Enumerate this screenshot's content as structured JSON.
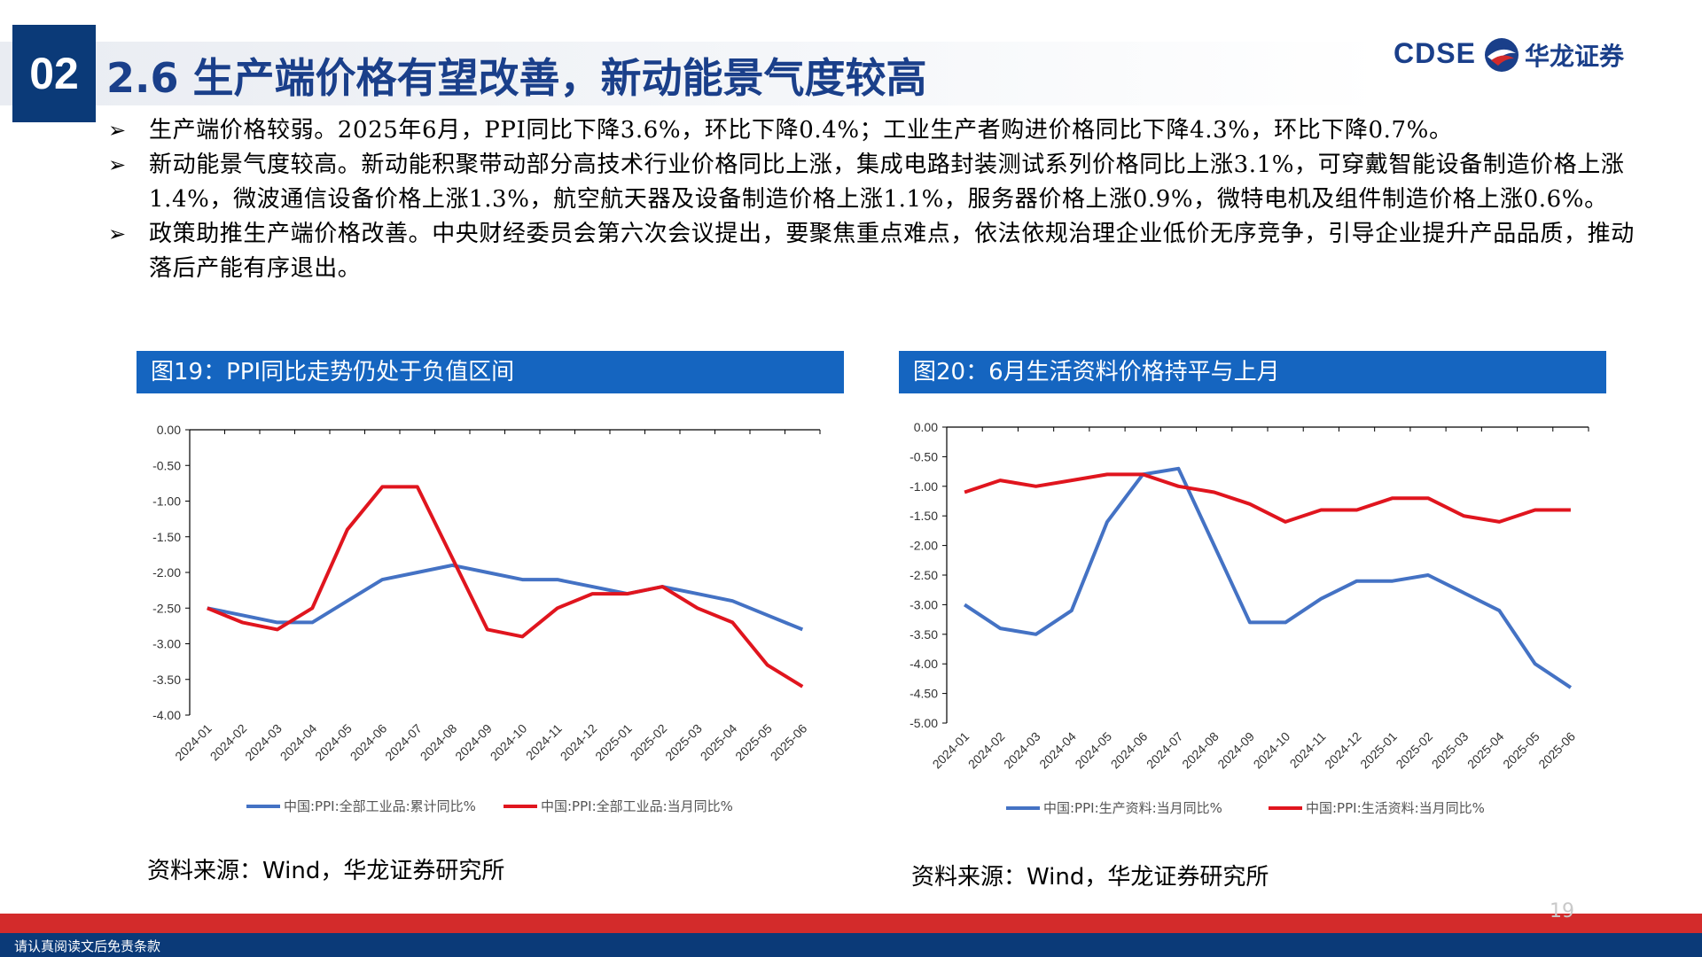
{
  "header": {
    "section_number": "02",
    "title": "2.6 生产端价格有望改善，新动能景气度较高",
    "logo_text": "CDSE",
    "logo_cn": "华龙证券",
    "brand_color": "#1a3f8a"
  },
  "bullets": [
    "生产端价格较弱。2025年6月，PPI同比下降3.6%，环比下降0.4%；工业生产者购进价格同比下降4.3%，环比下降0.7%。",
    "新动能景气度较高。新动能积聚带动部分高技术行业价格同比上涨，集成电路封装测试系列价格同比上涨3.1%，可穿戴智能设备制造价格上涨1.4%，微波通信设备价格上涨1.3%，航空航天器及设备制造价格上涨1.1%，服务器价格上涨0.9%，微特电机及组件制造价格上涨0.6%。",
    "政策助推生产端价格改善。中央财经委员会第六次会议提出，要聚焦重点难点，依法依规治理企业低价无序竞争，引导企业提升产品品质，推动落后产能有序退出。"
  ],
  "figures": [
    {
      "title": "图19：PPI同比走势仍处于负值区间",
      "source": "资料来源：Wind，华龙证券研究所"
    },
    {
      "title": "图20：6月生活资料价格持平与上月",
      "source": "资料来源：Wind，华龙证券研究所"
    }
  ],
  "chart_data": [
    {
      "type": "line",
      "x": [
        "2024-01",
        "2024-02",
        "2024-03",
        "2024-04",
        "2024-05",
        "2024-06",
        "2024-07",
        "2024-08",
        "2024-09",
        "2024-10",
        "2024-11",
        "2024-12",
        "2025-01",
        "2025-02",
        "2025-03",
        "2025-04",
        "2025-05",
        "2025-06"
      ],
      "ylim": [
        -4.0,
        0.0
      ],
      "yticks": [
        "0.00",
        "-0.50",
        "-1.00",
        "-1.50",
        "-2.00",
        "-2.50",
        "-3.00",
        "-3.50",
        "-4.00"
      ],
      "legend_position": "bottom",
      "series": [
        {
          "name": "中国:PPI:全部工业品:累计同比%",
          "color": "#4472c4",
          "values": [
            -2.5,
            -2.6,
            -2.7,
            -2.7,
            -2.4,
            -2.1,
            -2.0,
            -1.9,
            -2.0,
            -2.1,
            -2.1,
            -2.2,
            -2.3,
            -2.2,
            -2.3,
            -2.4,
            -2.6,
            -2.8
          ]
        },
        {
          "name": "中国:PPI:全部工业品:当月同比%",
          "color": "#e0151e",
          "values": [
            -2.5,
            -2.7,
            -2.8,
            -2.5,
            -1.4,
            -0.8,
            -0.8,
            -1.8,
            -2.8,
            -2.9,
            -2.5,
            -2.3,
            -2.3,
            -2.2,
            -2.5,
            -2.7,
            -3.3,
            -3.6
          ]
        }
      ]
    },
    {
      "type": "line",
      "x": [
        "2024-01",
        "2024-02",
        "2024-03",
        "2024-04",
        "2024-05",
        "2024-06",
        "2024-07",
        "2024-08",
        "2024-09",
        "2024-10",
        "2024-11",
        "2024-12",
        "2025-01",
        "2025-02",
        "2025-03",
        "2025-04",
        "2025-05",
        "2025-06"
      ],
      "ylim": [
        -5.0,
        0.0
      ],
      "yticks": [
        "0.00",
        "-0.50",
        "-1.00",
        "-1.50",
        "-2.00",
        "-2.50",
        "-3.00",
        "-3.50",
        "-4.00",
        "-4.50",
        "-5.00"
      ],
      "legend_position": "bottom",
      "series": [
        {
          "name": "中国:PPI:生产资料:当月同比%",
          "color": "#4472c4",
          "values": [
            -3.0,
            -3.4,
            -3.5,
            -3.1,
            -1.6,
            -0.8,
            -0.7,
            -2.0,
            -3.3,
            -3.3,
            -2.9,
            -2.6,
            -2.6,
            -2.5,
            -2.8,
            -3.1,
            -4.0,
            -4.4
          ]
        },
        {
          "name": "中国:PPI:生活资料:当月同比%",
          "color": "#e0151e",
          "values": [
            -1.1,
            -0.9,
            -1.0,
            -0.9,
            -0.8,
            -0.8,
            -1.0,
            -1.1,
            -1.3,
            -1.6,
            -1.4,
            -1.4,
            -1.2,
            -1.2,
            -1.5,
            -1.6,
            -1.4,
            -1.4
          ]
        }
      ]
    }
  ],
  "footer": {
    "disclaimer": "请认真阅读文后免责条款",
    "page_number": "19",
    "accent_red": "#d32b2b",
    "accent_blue": "#0b3a78"
  }
}
